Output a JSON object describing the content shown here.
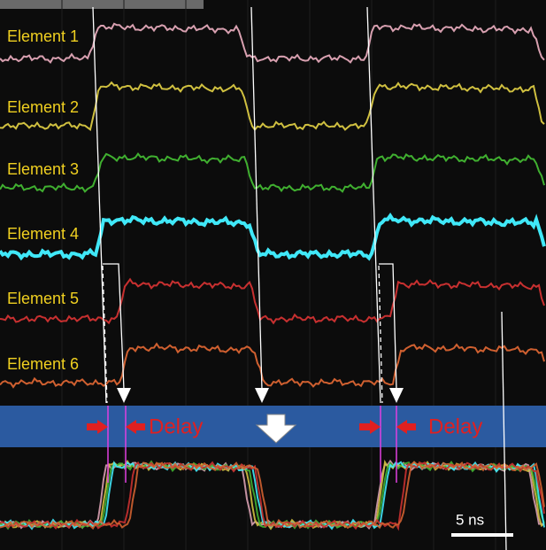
{
  "traces": {
    "labels": [
      "Element 1",
      "Element 2",
      "Element 3",
      "Element 4",
      "Element 5",
      "Element 6"
    ]
  },
  "annotations": {
    "delay": [
      "Delay",
      "Delay"
    ],
    "scale_bar": "5 ns"
  }
}
